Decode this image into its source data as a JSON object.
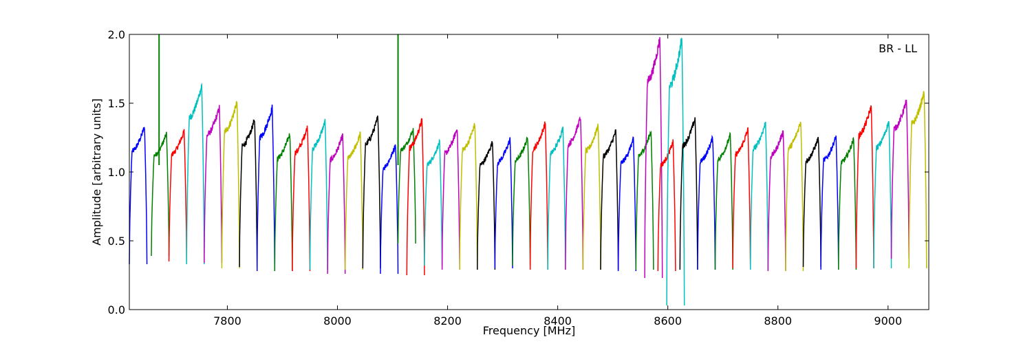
{
  "chart_data": {
    "type": "line",
    "title": "",
    "annotation": "BR - LL",
    "xlabel": "Frequency [MHz]",
    "ylabel": "Amplitude [arbitrary units]",
    "xlim": [
      7622,
      9074
    ],
    "ylim": [
      0,
      2.0
    ],
    "grid": false,
    "legend": "none",
    "x_ticks": [
      7800,
      8000,
      8200,
      8400,
      8600,
      8800,
      9000
    ],
    "x_tick_labels": [
      "7800",
      "8000",
      "8200",
      "8400",
      "8600",
      "8800",
      "9000"
    ],
    "y_ticks": [
      0.0,
      0.5,
      1.0,
      1.5,
      2.0
    ],
    "y_tick_labels": [
      "0.0",
      "0.5",
      "1.0",
      "1.5",
      "2.0"
    ],
    "channel_width_mhz": 32,
    "series": [
      {
        "color": "#0000ff",
        "segments": [
          [
            7622,
            1.33
          ],
          [
            7878,
            1.47
          ],
          [
            7878,
            1.47
          ],
          [
            8102,
            1.2
          ],
          [
            8334,
            1.24
          ],
          [
            8526,
            1.24
          ],
          [
            8654,
            1.22
          ],
          [
            8782,
            1.22
          ],
          [
            8910,
            1.24
          ]
        ]
      },
      {
        "color": "#008000",
        "segments": [
          [
            7686,
            1.28
          ],
          [
            7910,
            1.28
          ],
          [
            8142,
            1.31
          ],
          [
            8334,
            1.25
          ],
          [
            8526,
            1.3
          ],
          [
            8686,
            1.27
          ],
          [
            8718,
            1.25
          ],
          [
            8942,
            1.24
          ]
        ]
      },
      {
        "color": "#ff0000",
        "segments": [
          [
            7702,
            1.3
          ],
          [
            7934,
            1.33
          ],
          [
            8150,
            1.38
          ],
          [
            8374,
            1.36
          ],
          [
            8590,
            1.19
          ],
          [
            8726,
            1.31
          ],
          [
            8958,
            1.48
          ]
        ]
      },
      {
        "color": "#00bfbf",
        "segments": [
          [
            7750,
            1.63
          ],
          [
            7974,
            1.37
          ],
          [
            8222,
            1.22
          ],
          [
            8406,
            1.32
          ],
          [
            8622,
            1.93
          ],
          [
            8782,
            1.36
          ],
          [
            8982,
            1.37
          ]
        ]
      },
      {
        "color": "#bf00bf",
        "segments": [
          [
            7782,
            1.47
          ],
          [
            7998,
            1.27
          ],
          [
            8206,
            1.32
          ],
          [
            8430,
            1.4
          ],
          [
            8570,
            1.88
          ],
          [
            8806,
            1.3
          ],
          [
            9014,
            1.52
          ]
        ]
      },
      {
        "color": "#bfbf00",
        "segments": [
          [
            7814,
            1.51
          ],
          [
            8030,
            1.28
          ],
          [
            8254,
            1.35
          ],
          [
            8470,
            1.34
          ],
          [
            8606,
            1.22
          ],
          [
            8830,
            1.37
          ],
          [
            9046,
            1.58
          ]
        ]
      },
      {
        "color": "#000000",
        "segments": [
          [
            7846,
            1.38
          ],
          [
            8054,
            1.4
          ],
          [
            8286,
            1.22
          ],
          [
            8502,
            1.3
          ],
          [
            8646,
            1.39
          ],
          [
            8878,
            1.25
          ]
        ]
      }
    ],
    "channels": [
      {
        "center": 7638,
        "peak": 1.33,
        "min": 0.33,
        "color": "#0000ff"
      },
      {
        "center": 7678,
        "peak": 1.28,
        "min": 0.39,
        "color": "#008000",
        "spike": 2.0,
        "spike_x": 7676
      },
      {
        "center": 7710,
        "peak": 1.3,
        "min": 0.35,
        "color": "#ff0000"
      },
      {
        "center": 7742,
        "peak": 1.63,
        "min": 0.33,
        "color": "#00bfbf"
      },
      {
        "center": 7774,
        "peak": 1.47,
        "min": 0.34,
        "color": "#bf00bf"
      },
      {
        "center": 7806,
        "peak": 1.51,
        "min": 0.3,
        "color": "#bfbf00"
      },
      {
        "center": 7838,
        "peak": 1.38,
        "min": 0.31,
        "color": "#000000"
      },
      {
        "center": 7870,
        "peak": 1.47,
        "min": 0.28,
        "color": "#0000ff"
      },
      {
        "center": 7902,
        "peak": 1.28,
        "min": 0.28,
        "color": "#008000"
      },
      {
        "center": 7934,
        "peak": 1.33,
        "min": 0.28,
        "color": "#ff0000"
      },
      {
        "center": 7966,
        "peak": 1.37,
        "min": 0.29,
        "color": "#00bfbf"
      },
      {
        "center": 7998,
        "peak": 1.27,
        "min": 0.26,
        "color": "#bf00bf"
      },
      {
        "center": 8030,
        "peak": 1.28,
        "min": 0.29,
        "color": "#bfbf00"
      },
      {
        "center": 8062,
        "peak": 1.4,
        "min": 0.3,
        "color": "#000000"
      },
      {
        "center": 8094,
        "peak": 1.2,
        "min": 0.26,
        "color": "#0000ff"
      },
      {
        "center": 8126,
        "peak": 1.31,
        "min": 0.48,
        "color": "#008000",
        "spike": 2.0,
        "spike_x": 8110
      },
      {
        "center": 8142,
        "peak": 1.38,
        "min": 0.25,
        "color": "#ff0000"
      },
      {
        "center": 8174,
        "peak": 1.22,
        "min": 0.32,
        "color": "#00bfbf"
      },
      {
        "center": 8206,
        "peak": 1.32,
        "min": 0.29,
        "color": "#bf00bf"
      },
      {
        "center": 8238,
        "peak": 1.35,
        "min": 0.29,
        "color": "#bfbf00"
      },
      {
        "center": 8270,
        "peak": 1.22,
        "min": 0.29,
        "color": "#000000"
      },
      {
        "center": 8302,
        "peak": 1.24,
        "min": 0.3,
        "color": "#0000ff"
      },
      {
        "center": 8334,
        "peak": 1.25,
        "min": 0.32,
        "color": "#008000"
      },
      {
        "center": 8366,
        "peak": 1.36,
        "min": 0.29,
        "color": "#ff0000"
      },
      {
        "center": 8398,
        "peak": 1.32,
        "min": 0.29,
        "color": "#00bfbf"
      },
      {
        "center": 8430,
        "peak": 1.4,
        "min": 0.29,
        "color": "#bf00bf"
      },
      {
        "center": 8462,
        "peak": 1.34,
        "min": 0.29,
        "color": "#bfbf00"
      },
      {
        "center": 8494,
        "peak": 1.3,
        "min": 0.29,
        "color": "#000000"
      },
      {
        "center": 8526,
        "peak": 1.24,
        "min": 0.28,
        "color": "#0000ff"
      },
      {
        "center": 8558,
        "peak": 1.3,
        "min": 0.29,
        "color": "#008000"
      },
      {
        "center": 8574,
        "peak": 1.97,
        "min": 0.23,
        "color": "#bf00bf"
      },
      {
        "center": 8598,
        "peak": 1.22,
        "min": 0.28,
        "color": "#ff0000"
      },
      {
        "center": 8614,
        "peak": 1.97,
        "min": 0.03,
        "color": "#00bfbf"
      },
      {
        "center": 8638,
        "peak": 1.39,
        "min": 0.29,
        "color": "#000000"
      },
      {
        "center": 8670,
        "peak": 1.25,
        "min": 0.29,
        "color": "#0000ff"
      },
      {
        "center": 8702,
        "peak": 1.27,
        "min": 0.29,
        "color": "#008000"
      },
      {
        "center": 8734,
        "peak": 1.31,
        "min": 0.3,
        "color": "#ff0000"
      },
      {
        "center": 8766,
        "peak": 1.36,
        "min": 0.29,
        "color": "#00bfbf"
      },
      {
        "center": 8798,
        "peak": 1.3,
        "min": 0.28,
        "color": "#bf00bf"
      },
      {
        "center": 8830,
        "peak": 1.37,
        "min": 0.28,
        "color": "#bfbf00"
      },
      {
        "center": 8862,
        "peak": 1.25,
        "min": 0.31,
        "color": "#000000"
      },
      {
        "center": 8894,
        "peak": 1.26,
        "min": 0.29,
        "color": "#0000ff"
      },
      {
        "center": 8926,
        "peak": 1.24,
        "min": 0.29,
        "color": "#008000"
      },
      {
        "center": 8958,
        "peak": 1.48,
        "min": 0.3,
        "color": "#ff0000"
      },
      {
        "center": 8990,
        "peak": 1.37,
        "min": 0.3,
        "color": "#00bfbf"
      },
      {
        "center": 9022,
        "peak": 1.52,
        "min": 0.37,
        "color": "#bf00bf"
      },
      {
        "center": 9054,
        "peak": 1.58,
        "min": 0.3,
        "color": "#bfbf00"
      }
    ]
  }
}
